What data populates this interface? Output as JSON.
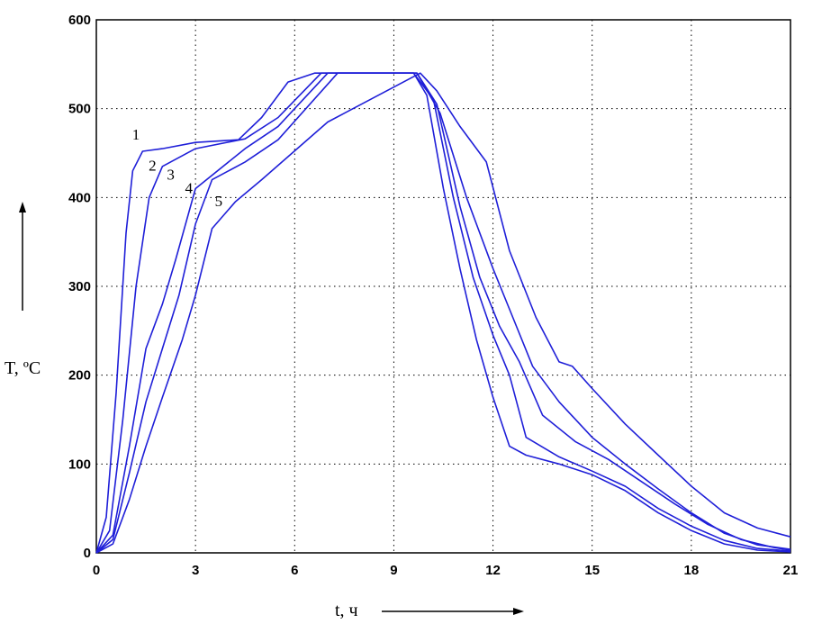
{
  "chart_data": {
    "type": "line",
    "title": "",
    "xlabel": "t, ч",
    "ylabel": "T, ºС",
    "xlim": [
      0,
      21
    ],
    "ylim": [
      0,
      600
    ],
    "xticks": [
      0,
      3,
      6,
      9,
      12,
      15,
      18,
      21
    ],
    "yticks": [
      0,
      100,
      200,
      300,
      400,
      500,
      600
    ],
    "grid": true,
    "line_color": "#1f1fd8",
    "series": [
      {
        "name": "1",
        "x": [
          0,
          0.3,
          0.6,
          0.9,
          1.1,
          1.4,
          2,
          3,
          4.3,
          5,
          5.8,
          6.6,
          9.6,
          10,
          10.5,
          11,
          11.5,
          12,
          12.5,
          13,
          14,
          15,
          16,
          17,
          18,
          19,
          20,
          21
        ],
        "y": [
          0,
          40,
          180,
          360,
          430,
          452,
          455,
          462,
          465,
          490,
          530,
          540,
          540,
          515,
          410,
          320,
          240,
          175,
          120,
          110,
          100,
          88,
          70,
          45,
          25,
          10,
          3,
          1
        ]
      },
      {
        "name": "2",
        "x": [
          0,
          0.4,
          0.8,
          1.2,
          1.6,
          2,
          3,
          4.5,
          5.5,
          6.8,
          9.6,
          10.2,
          10.8,
          11.4,
          12,
          12.5,
          13,
          14,
          15,
          16,
          17,
          18,
          19,
          20,
          21
        ],
        "y": [
          0,
          25,
          150,
          300,
          400,
          435,
          455,
          466,
          490,
          540,
          540,
          510,
          400,
          310,
          245,
          200,
          130,
          108,
          92,
          75,
          50,
          30,
          14,
          5,
          2
        ]
      },
      {
        "name": "3",
        "x": [
          0,
          0.5,
          1,
          1.5,
          2,
          2.4,
          3,
          4.5,
          5.5,
          7,
          9.7,
          10.3,
          11,
          11.6,
          12.2,
          12.8,
          13.5,
          14.5,
          15.5,
          16.5,
          17.5,
          18.5,
          19.5,
          20.5,
          21
        ],
        "y": [
          0,
          20,
          120,
          230,
          280,
          330,
          410,
          455,
          480,
          540,
          540,
          505,
          390,
          310,
          255,
          215,
          155,
          125,
          105,
          80,
          55,
          32,
          15,
          6,
          3
        ]
      },
      {
        "name": "4",
        "x": [
          0,
          0.5,
          1,
          1.5,
          2,
          2.5,
          3,
          3.5,
          4.5,
          5.5,
          7.3,
          9.7,
          10.4,
          11.2,
          12,
          12.6,
          13.2,
          14,
          15,
          16,
          17,
          18,
          19,
          20,
          21
        ],
        "y": [
          0,
          15,
          90,
          170,
          230,
          290,
          370,
          420,
          440,
          465,
          540,
          540,
          495,
          400,
          320,
          265,
          210,
          170,
          130,
          100,
          72,
          45,
          22,
          9,
          4
        ]
      },
      {
        "name": "5",
        "x": [
          0,
          0.5,
          1,
          1.5,
          2,
          2.6,
          3,
          3.5,
          4.2,
          5,
          7,
          9.8,
          10.3,
          11,
          11.8,
          12.5,
          13.3,
          14,
          14.4,
          15,
          16,
          17,
          18,
          19,
          20,
          21
        ],
        "y": [
          0,
          10,
          60,
          120,
          175,
          240,
          290,
          365,
          395,
          420,
          485,
          540,
          520,
          480,
          440,
          340,
          265,
          215,
          210,
          185,
          145,
          110,
          75,
          45,
          28,
          18
        ]
      }
    ],
    "curve_labels": [
      {
        "text": "1",
        "x": 1.2,
        "y": 465
      },
      {
        "text": "2",
        "x": 1.7,
        "y": 430
      },
      {
        "text": "3",
        "x": 2.25,
        "y": 420
      },
      {
        "text": "4",
        "x": 2.8,
        "y": 405
      },
      {
        "text": "5",
        "x": 3.7,
        "y": 390
      }
    ]
  }
}
